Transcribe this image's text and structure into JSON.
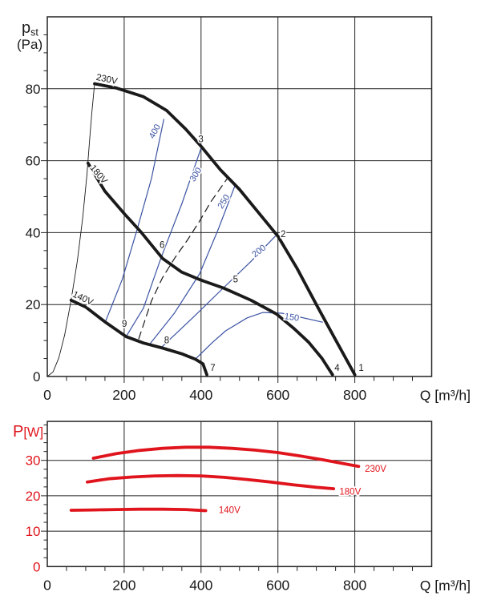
{
  "palette": {
    "black": "#1a1a1a",
    "blue": "#3b53a3",
    "red": "#e0141c",
    "grid": "#222222"
  },
  "chart_data": [
    {
      "type": "line",
      "name": "static-pressure-vs-flow",
      "ylabel_main": "p",
      "ylabel_sub": "st",
      "ylabel_unit": "(Pa)",
      "xlabel": "Q [m³/h]",
      "xlim": [
        0,
        1000
      ],
      "ylim": [
        0,
        100
      ],
      "x_major_ticks": [
        0,
        200,
        400,
        600,
        800
      ],
      "y_major_ticks": [
        0,
        20,
        40,
        60,
        80
      ],
      "x_minor_step": 50,
      "y_minor_step": 5,
      "ylabel_color": "black",
      "ytick_color": "black",
      "series": [
        {
          "name": "stall-line",
          "color": "black",
          "width": 0.9,
          "points": [
            [
              0,
              0
            ],
            [
              15,
              1.3
            ],
            [
              30,
              5.2
            ],
            [
              45,
              11.5
            ],
            [
              62,
              21.2
            ],
            [
              78,
              32
            ],
            [
              92,
              44
            ],
            [
              103,
              56
            ],
            [
              110,
              65.5
            ],
            [
              116,
              73.5
            ],
            [
              123,
              81.4
            ]
          ]
        },
        {
          "name": "speed-line-400",
          "color": "blue",
          "width": 1.2,
          "points": [
            [
              151,
              15.2
            ],
            [
              195,
              27
            ],
            [
              234,
              41
            ],
            [
              271,
              55
            ],
            [
              303,
              71.5
            ]
          ]
        },
        {
          "name": "speed-line-300",
          "color": "blue",
          "width": 1.2,
          "points": [
            [
              205,
              11.1
            ],
            [
              250,
              19
            ],
            [
              296,
              33
            ],
            [
              350,
              48
            ],
            [
              400,
              63.5
            ]
          ]
        },
        {
          "name": "speed-line-250",
          "color": "blue",
          "width": 1.2,
          "points": [
            [
              265,
              8.8
            ],
            [
              330,
              17.5
            ],
            [
              396,
              28.5
            ],
            [
              445,
              41
            ],
            [
              488,
              53
            ]
          ]
        },
        {
          "name": "speed-line-200",
          "color": "blue",
          "width": 1.2,
          "points": [
            [
              296,
              8
            ],
            [
              380,
              16.5
            ],
            [
              458,
              24.6
            ],
            [
              530,
              32
            ],
            [
              593,
              39
            ]
          ]
        },
        {
          "name": "speed-line-150",
          "color": "blue",
          "width": 1.2,
          "points": [
            [
              385,
              4.8
            ],
            [
              430,
              9.5
            ],
            [
              464,
              12.7
            ],
            [
              520,
              16.3
            ],
            [
              561,
              17.8
            ],
            [
              610,
              17.6
            ],
            [
              650,
              16.7
            ],
            [
              716,
              15.1
            ]
          ]
        },
        {
          "name": "guide-line-dashed",
          "color": "black",
          "width": 1.2,
          "dash": "9 6",
          "points": [
            [
              238,
              10.5
            ],
            [
              271,
              21
            ],
            [
              300,
              27.5
            ],
            [
              332,
              33
            ],
            [
              365,
              38
            ],
            [
              398,
              43.5
            ],
            [
              425,
              48.5
            ],
            [
              468,
              55
            ]
          ]
        },
        {
          "name": "curve-230V",
          "color": "black",
          "width": 3.8,
          "points": [
            [
              123,
              81.4
            ],
            [
              180,
              80.2
            ],
            [
              250,
              77.8
            ],
            [
              310,
              74
            ],
            [
              360,
              68.8
            ],
            [
              400,
              64
            ],
            [
              450,
              57.5
            ],
            [
              500,
              52
            ],
            [
              550,
              45.5
            ],
            [
              600,
              39
            ],
            [
              650,
              30
            ],
            [
              700,
              20
            ],
            [
              750,
              10.2
            ],
            [
              800,
              0.5
            ]
          ]
        },
        {
          "name": "curve-180V",
          "color": "black",
          "width": 3.8,
          "points": [
            [
              106,
              59.3
            ],
            [
              150,
              51.5
            ],
            [
              200,
              45.3
            ],
            [
              245,
              40
            ],
            [
              300,
              32.8
            ],
            [
              350,
              29
            ],
            [
              400,
              26.8
            ],
            [
              458,
              24.6
            ],
            [
              530,
              21.2
            ],
            [
              596,
              17.4
            ],
            [
              640,
              13.5
            ],
            [
              680,
              9.5
            ],
            [
              715,
              5
            ],
            [
              742,
              0.5
            ]
          ]
        },
        {
          "name": "curve-140V",
          "color": "black",
          "width": 3.8,
          "points": [
            [
              62,
              21.2
            ],
            [
              100,
              19.3
            ],
            [
              150,
              15.2
            ],
            [
              205,
              11.1
            ],
            [
              250,
              9.3
            ],
            [
              300,
              7.9
            ],
            [
              350,
              6.3
            ],
            [
              385,
              4.8
            ],
            [
              405,
              3.5
            ],
            [
              415,
              0.5
            ]
          ]
        }
      ],
      "curve_labels": [
        {
          "text": "230V",
          "x": 126,
          "y": 82.5,
          "angle": 12,
          "color": "black",
          "size": 11.5
        },
        {
          "text": "180V",
          "x": 110,
          "y": 58,
          "angle": 50,
          "color": "black",
          "size": 11.5
        },
        {
          "text": "140V",
          "x": 64,
          "y": 22.3,
          "angle": 25,
          "color": "black",
          "size": 11.5
        },
        {
          "text": "400",
          "x": 277,
          "y": 66,
          "angle": -62,
          "color": "blue",
          "size": 11
        },
        {
          "text": "300",
          "x": 382,
          "y": 54,
          "angle": -58,
          "color": "blue",
          "size": 11
        },
        {
          "text": "250",
          "x": 455,
          "y": 46.5,
          "angle": -58,
          "color": "blue",
          "size": 11
        },
        {
          "text": "200",
          "x": 540,
          "y": 33,
          "angle": -38,
          "color": "blue",
          "size": 11
        },
        {
          "text": "150",
          "x": 616,
          "y": 16,
          "angle": 8,
          "color": "blue",
          "size": 11
        }
      ],
      "point_labels": [
        {
          "text": "1",
          "x": 810,
          "y": 1.6
        },
        {
          "text": "2",
          "x": 607,
          "y": 38.8
        },
        {
          "text": "3",
          "x": 393,
          "y": 65.2
        },
        {
          "text": "4",
          "x": 747,
          "y": 1.6
        },
        {
          "text": "5",
          "x": 483,
          "y": 26.2
        },
        {
          "text": "6",
          "x": 292,
          "y": 35.8
        },
        {
          "text": "7",
          "x": 424,
          "y": 1.6
        },
        {
          "text": "8",
          "x": 304,
          "y": 9.2
        },
        {
          "text": "9",
          "x": 194,
          "y": 13.8
        }
      ]
    },
    {
      "type": "line",
      "name": "power-vs-flow",
      "ylabel_main": "P",
      "ylabel_unit": "[W]",
      "xlabel": "Q [m³/h]",
      "xlim": [
        0,
        1000
      ],
      "ylim": [
        0,
        41
      ],
      "x_major_ticks": [
        0,
        200,
        400,
        600,
        800
      ],
      "y_major_ticks": [
        0,
        10,
        20,
        30
      ],
      "x_minor_step": 50,
      "y_minor_step": 2.5,
      "ylabel_color": "red",
      "ytick_color": "red",
      "series": [
        {
          "name": "power-230V",
          "color": "red",
          "width": 3.8,
          "points": [
            [
              120,
              30.6
            ],
            [
              180,
              31.9
            ],
            [
              240,
              32.8
            ],
            [
              300,
              33.4
            ],
            [
              360,
              33.7
            ],
            [
              420,
              33.7
            ],
            [
              480,
              33.4
            ],
            [
              540,
              32.9
            ],
            [
              600,
              32.2
            ],
            [
              660,
              31.2
            ],
            [
              720,
              30.1
            ],
            [
              810,
              28.3
            ]
          ]
        },
        {
          "name": "power-180V",
          "color": "red",
          "width": 3.8,
          "points": [
            [
              104,
              23.9
            ],
            [
              160,
              24.8
            ],
            [
              220,
              25.3
            ],
            [
              280,
              25.6
            ],
            [
              340,
              25.7
            ],
            [
              400,
              25.6
            ],
            [
              460,
              25.2
            ],
            [
              520,
              24.6
            ],
            [
              580,
              23.9
            ],
            [
              640,
              23.1
            ],
            [
              700,
              22.4
            ],
            [
              745,
              22
            ]
          ]
        },
        {
          "name": "power-140V",
          "color": "red",
          "width": 3.8,
          "points": [
            [
              62,
              15.9
            ],
            [
              120,
              16
            ],
            [
              180,
              16.1
            ],
            [
              240,
              16.2
            ],
            [
              300,
              16.2
            ],
            [
              360,
              16.1
            ],
            [
              412,
              15.8
            ]
          ]
        }
      ],
      "curve_labels": [
        {
          "text": "230V",
          "x": 826,
          "y": 26.8,
          "angle": 0,
          "color": "red",
          "size": 11.5
        },
        {
          "text": "180V",
          "x": 760,
          "y": 20.3,
          "angle": 0,
          "color": "red",
          "size": 11.5
        },
        {
          "text": "140V",
          "x": 446,
          "y": 15.1,
          "angle": 0,
          "color": "red",
          "size": 11.5
        }
      ],
      "point_labels": []
    }
  ]
}
